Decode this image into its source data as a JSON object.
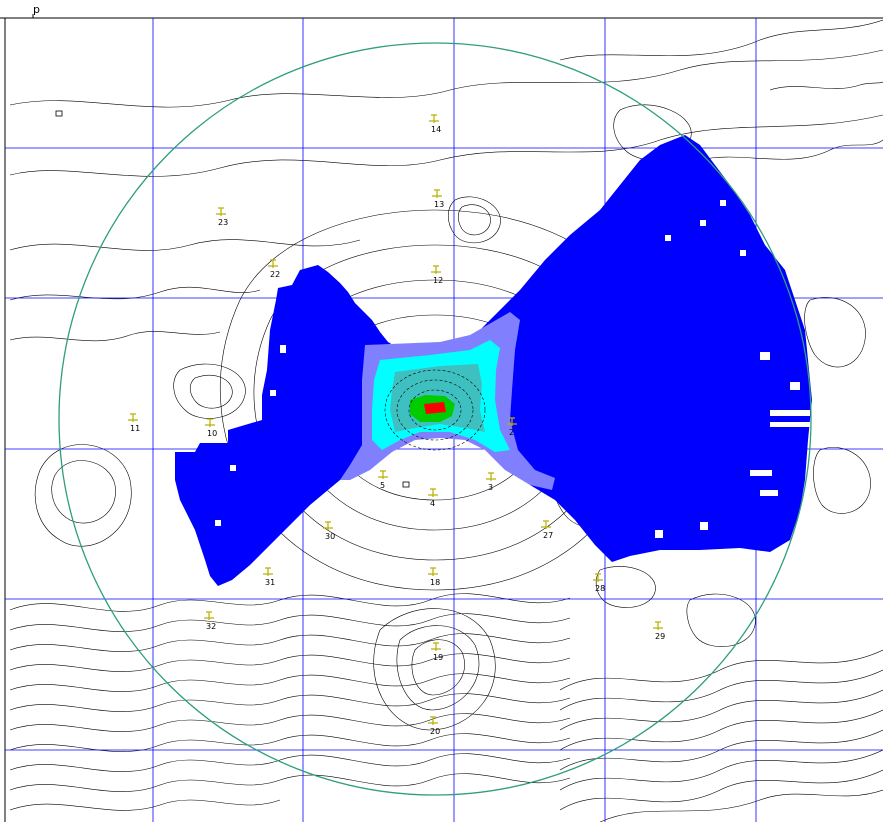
{
  "map": {
    "top_tick_label": "p",
    "colors": {
      "background": "#ffffff",
      "contour": "#000000",
      "grid": "#0000ff",
      "range_ring": "#2e9e7e",
      "coverage_main": "#0000ff",
      "coverage_light": "#8080ff",
      "coverage_cyan": "#00ffff",
      "coverage_teal": "#3fc0c0",
      "coverage_green": "#00cc00",
      "coverage_red": "#ff0000",
      "station_marker": "#b8b000"
    },
    "stations": [
      {
        "label": "2"
      },
      {
        "label": "3"
      },
      {
        "label": "4"
      },
      {
        "label": "5"
      },
      {
        "label": "10"
      },
      {
        "label": "11"
      },
      {
        "label": "12"
      },
      {
        "label": "13"
      },
      {
        "label": "14"
      },
      {
        "label": "18"
      },
      {
        "label": "19"
      },
      {
        "label": "20"
      },
      {
        "label": "22"
      },
      {
        "label": "23"
      },
      {
        "label": "27"
      },
      {
        "label": "28"
      },
      {
        "label": "29"
      },
      {
        "label": "30"
      },
      {
        "label": "31"
      },
      {
        "label": "32"
      }
    ]
  }
}
